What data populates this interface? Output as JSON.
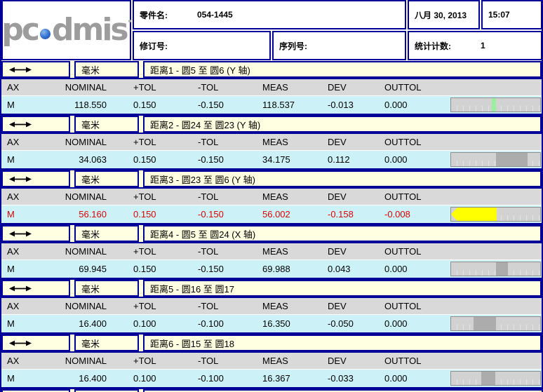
{
  "header": {
    "logo_pre": "pc",
    "logo_post": "dmis",
    "part_name_label": "零件名:",
    "part_name_value": "054-1445",
    "date": "八月 30, 2013",
    "time": "15:07",
    "revision_label": "修订号:",
    "serial_label": "序列号:",
    "stat_count_label": "统计计数:",
    "stat_count_value": "1"
  },
  "unit_label": "毫米",
  "columns": [
    "AX",
    "NOMINAL",
    "+TOL",
    "-TOL",
    "MEAS",
    "DEV",
    "OUTTOL"
  ],
  "colors": {
    "border_navy": "#000099",
    "dim_row_cream": "#FFFFE1",
    "data_row_cyan": "#CCF2F8",
    "header_row_gray": "#D9D9D9",
    "outtol_text_red": "#E00000",
    "bar_in_tol_green": "#9BF09B",
    "bar_dev_gray": "#ACACAC",
    "bar_out_tol_yellow": "#FFFF00"
  },
  "sections": [
    {
      "title": "距离1 - 圆5 至 圆6 (Y 轴)",
      "row": {
        "ax": "M",
        "nominal": "118.550",
        "ptol": "0.150",
        "ntol": "-0.150",
        "meas": "118.537",
        "dev": "-0.013",
        "outtol": "0.000"
      },
      "out_of_tol": false,
      "bar": {
        "color": "#9BF09B",
        "from_pct": 46,
        "to_pct": 50.5,
        "arrow": ""
      }
    },
    {
      "title": "距离2 - 圆24 至 圆23 (Y 轴)",
      "row": {
        "ax": "M",
        "nominal": "34.063",
        "ptol": "0.150",
        "ntol": "-0.150",
        "meas": "34.175",
        "dev": "0.112",
        "outtol": "0.000"
      },
      "out_of_tol": false,
      "bar": {
        "color": "#ACACAC",
        "from_pct": 50,
        "to_pct": 85.5,
        "arrow": ""
      }
    },
    {
      "title": "距离3 - 圆23 至 圆6 (Y 轴)",
      "row": {
        "ax": "M",
        "nominal": "56.160",
        "ptol": "0.150",
        "ntol": "-0.150",
        "meas": "56.002",
        "dev": "-0.158",
        "outtol": "-0.008"
      },
      "out_of_tol": true,
      "bar": {
        "color": "#FFFF00",
        "from_pct": 0,
        "to_pct": 51,
        "arrow": "left"
      }
    },
    {
      "title": "距离4 - 圆5 至 圆24 (X 轴)",
      "row": {
        "ax": "M",
        "nominal": "69.945",
        "ptol": "0.150",
        "ntol": "-0.150",
        "meas": "69.988",
        "dev": "0.043",
        "outtol": "0.000"
      },
      "out_of_tol": false,
      "bar": {
        "color": "#ACACAC",
        "from_pct": 50,
        "to_pct": 64,
        "arrow": ""
      }
    },
    {
      "title": "距离5 - 圆16 至 圆17",
      "row": {
        "ax": "M",
        "nominal": "16.400",
        "ptol": "0.100",
        "ntol": "-0.100",
        "meas": "16.350",
        "dev": "-0.050",
        "outtol": "0.000"
      },
      "out_of_tol": false,
      "bar": {
        "color": "#ACACAC",
        "from_pct": 25,
        "to_pct": 50,
        "arrow": ""
      }
    },
    {
      "title": "距离6 - 圆15 至 圆18",
      "row": {
        "ax": "M",
        "nominal": "16.400",
        "ptol": "0.100",
        "ntol": "-0.100",
        "meas": "16.367",
        "dev": "-0.033",
        "outtol": "0.000"
      },
      "out_of_tol": false,
      "bar": {
        "color": "#ACACAC",
        "from_pct": 33.5,
        "to_pct": 50,
        "arrow": ""
      }
    }
  ]
}
